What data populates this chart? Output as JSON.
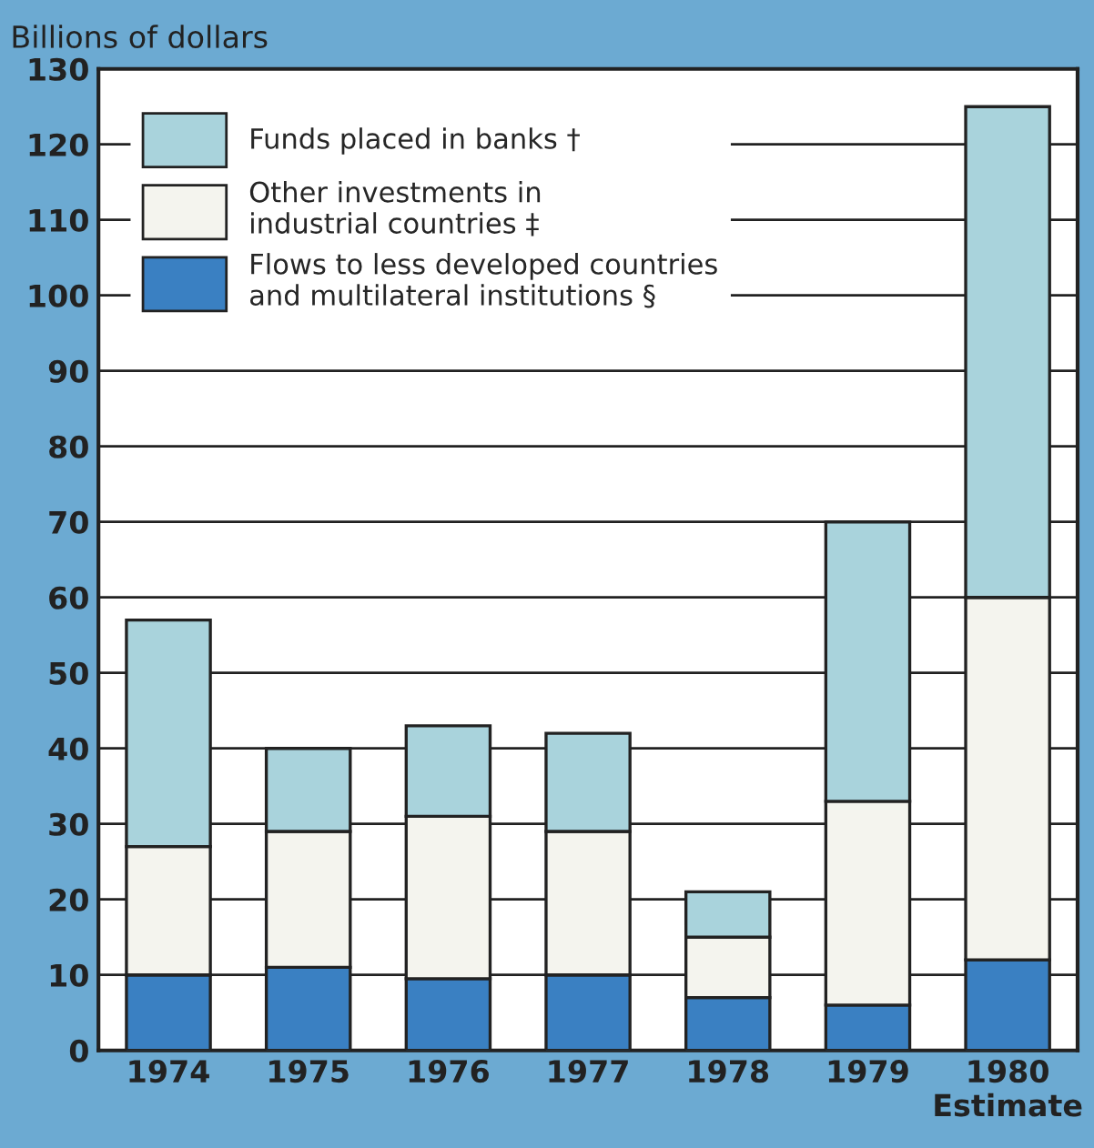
{
  "chart_data": {
    "type": "bar",
    "stacked": true,
    "ylabel": "Billions of dollars",
    "categories": [
      "1974",
      "1975",
      "1976",
      "1977",
      "1978",
      "1979",
      "1980\nEstimate"
    ],
    "series": [
      {
        "name": "Flows to less developed countries\nand multilateral institutions §",
        "color": "#3a80c2",
        "values": [
          10,
          11,
          9.5,
          10,
          7,
          6,
          12
        ]
      },
      {
        "name": "Other investments in\nindustrial countries ‡",
        "color": "#f4f4ee",
        "values": [
          17,
          18,
          21.5,
          19,
          8,
          27,
          48
        ]
      },
      {
        "name": "Funds placed in banks †",
        "color": "#a9d3dc",
        "values": [
          30,
          11,
          12,
          13,
          6,
          37,
          65
        ]
      }
    ],
    "ylim": [
      0,
      130
    ],
    "yticks": [
      0,
      10,
      20,
      30,
      40,
      50,
      60,
      70,
      80,
      90,
      100,
      110,
      120,
      130
    ],
    "grid": "y",
    "legend": "top left"
  }
}
